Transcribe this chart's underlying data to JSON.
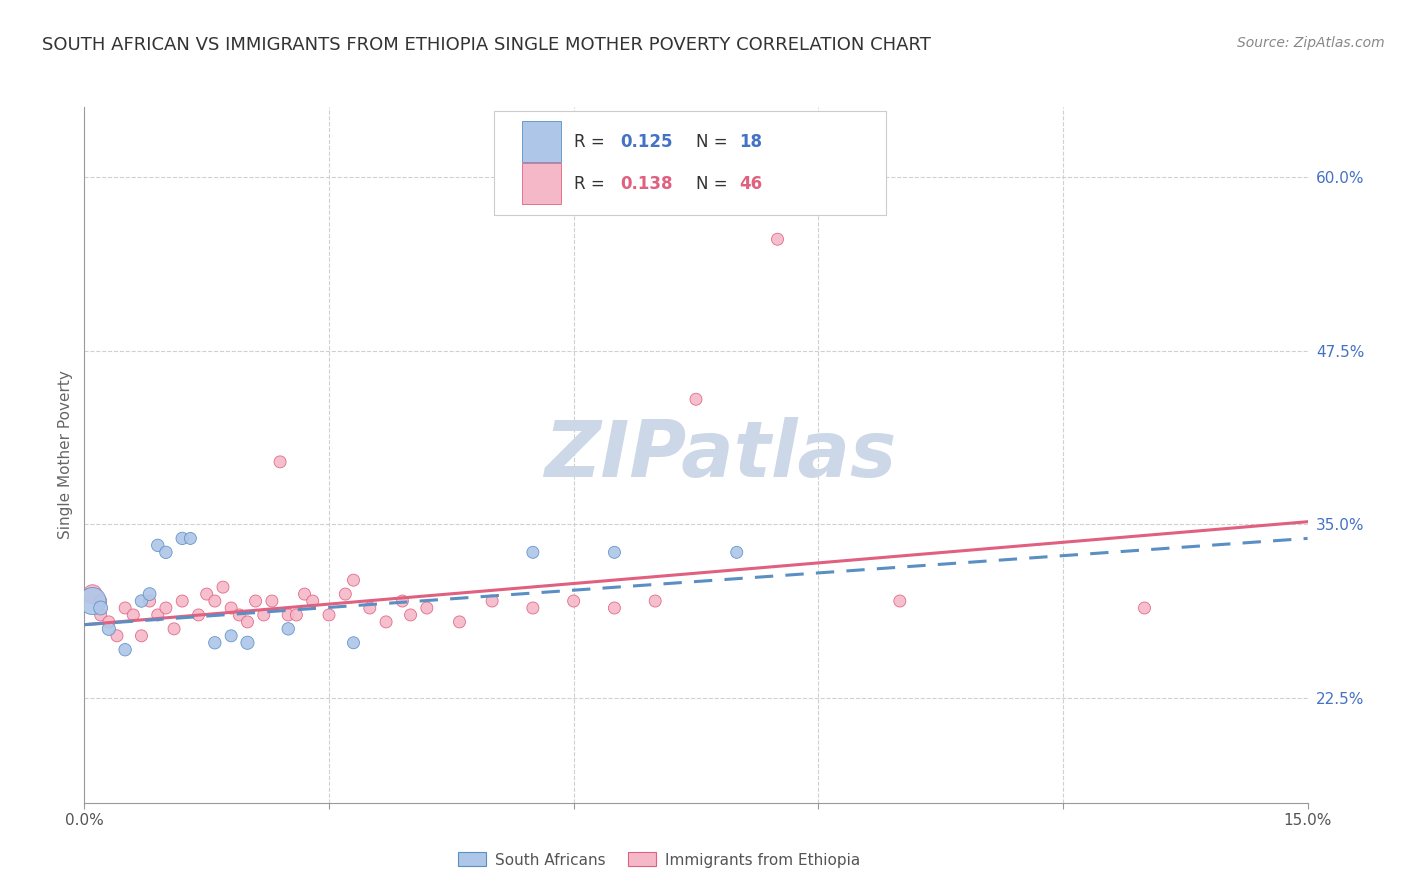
{
  "title": "SOUTH AFRICAN VS IMMIGRANTS FROM ETHIOPIA SINGLE MOTHER POVERTY CORRELATION CHART",
  "source": "Source: ZipAtlas.com",
  "ylabel": "Single Mother Poverty",
  "r_sa": 0.125,
  "n_sa": 18,
  "r_eth": 0.138,
  "n_eth": 46,
  "xlim": [
    0.0,
    0.15
  ],
  "ylim": [
    0.15,
    0.65
  ],
  "ytick_values": [
    0.225,
    0.35,
    0.475,
    0.6
  ],
  "ytick_labels": [
    "22.5%",
    "35.0%",
    "47.5%",
    "60.0%"
  ],
  "background_color": "#ffffff",
  "grid_color": "#d0d0d0",
  "title_color": "#333333",
  "sa_color": "#aec6e8",
  "sa_edge_color": "#5a8fc4",
  "sa_line_color": "#5a8fc4",
  "eth_color": "#f5b8c8",
  "eth_edge_color": "#e06080",
  "eth_line_color": "#e06080",
  "watermark_color": "#ccd8e8",
  "sa_points": [
    [
      0.001,
      0.295
    ],
    [
      0.002,
      0.29
    ],
    [
      0.003,
      0.275
    ],
    [
      0.005,
      0.26
    ],
    [
      0.007,
      0.295
    ],
    [
      0.008,
      0.3
    ],
    [
      0.009,
      0.335
    ],
    [
      0.01,
      0.33
    ],
    [
      0.012,
      0.34
    ],
    [
      0.013,
      0.34
    ],
    [
      0.016,
      0.265
    ],
    [
      0.018,
      0.27
    ],
    [
      0.02,
      0.265
    ],
    [
      0.025,
      0.275
    ],
    [
      0.033,
      0.265
    ],
    [
      0.055,
      0.33
    ],
    [
      0.065,
      0.33
    ],
    [
      0.08,
      0.33
    ]
  ],
  "sa_sizes": [
    380,
    100,
    90,
    80,
    80,
    85,
    80,
    80,
    80,
    75,
    80,
    75,
    90,
    80,
    75,
    75,
    75,
    75
  ],
  "eth_points": [
    [
      0.001,
      0.3
    ],
    [
      0.002,
      0.295
    ],
    [
      0.002,
      0.285
    ],
    [
      0.003,
      0.28
    ],
    [
      0.004,
      0.27
    ],
    [
      0.005,
      0.29
    ],
    [
      0.006,
      0.285
    ],
    [
      0.007,
      0.27
    ],
    [
      0.008,
      0.295
    ],
    [
      0.009,
      0.285
    ],
    [
      0.01,
      0.29
    ],
    [
      0.011,
      0.275
    ],
    [
      0.012,
      0.295
    ],
    [
      0.014,
      0.285
    ],
    [
      0.015,
      0.3
    ],
    [
      0.016,
      0.295
    ],
    [
      0.017,
      0.305
    ],
    [
      0.018,
      0.29
    ],
    [
      0.019,
      0.285
    ],
    [
      0.02,
      0.28
    ],
    [
      0.021,
      0.295
    ],
    [
      0.022,
      0.285
    ],
    [
      0.023,
      0.295
    ],
    [
      0.024,
      0.395
    ],
    [
      0.025,
      0.285
    ],
    [
      0.026,
      0.285
    ],
    [
      0.027,
      0.3
    ],
    [
      0.028,
      0.295
    ],
    [
      0.03,
      0.285
    ],
    [
      0.032,
      0.3
    ],
    [
      0.033,
      0.31
    ],
    [
      0.035,
      0.29
    ],
    [
      0.037,
      0.28
    ],
    [
      0.039,
      0.295
    ],
    [
      0.04,
      0.285
    ],
    [
      0.042,
      0.29
    ],
    [
      0.046,
      0.28
    ],
    [
      0.05,
      0.295
    ],
    [
      0.055,
      0.29
    ],
    [
      0.06,
      0.295
    ],
    [
      0.065,
      0.29
    ],
    [
      0.07,
      0.295
    ],
    [
      0.075,
      0.44
    ],
    [
      0.085,
      0.555
    ],
    [
      0.1,
      0.295
    ],
    [
      0.13,
      0.29
    ]
  ],
  "eth_sizes": [
    180,
    75,
    75,
    75,
    75,
    75,
    75,
    75,
    75,
    75,
    75,
    75,
    75,
    75,
    75,
    75,
    75,
    75,
    75,
    75,
    75,
    75,
    75,
    75,
    75,
    75,
    75,
    75,
    75,
    75,
    75,
    75,
    75,
    75,
    75,
    75,
    75,
    75,
    75,
    75,
    75,
    75,
    75,
    75,
    75,
    75
  ]
}
